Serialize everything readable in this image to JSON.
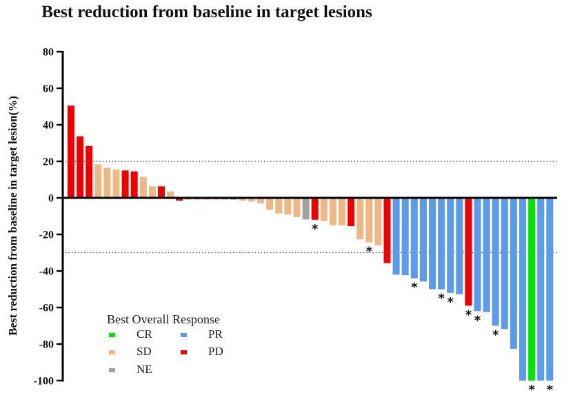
{
  "chart_data": {
    "type": "bar",
    "subtype": "waterfall",
    "title": "Best reduction from baseline in target lesions",
    "xlabel": "",
    "ylabel": "Best reduction from baseline in target lesion(%)",
    "ylim": [
      -100,
      80
    ],
    "yticks": [
      80,
      60,
      40,
      20,
      0,
      -20,
      -40,
      -60,
      -80,
      -100
    ],
    "reference_lines": [
      20,
      -30
    ],
    "grid": false,
    "legend": {
      "title": "Best Overall Response",
      "placement": "bottom-left",
      "entries": [
        {
          "key": "CR",
          "label": "CR",
          "color": "#00E600"
        },
        {
          "key": "PR",
          "label": "PR",
          "color": "#5B9BEA"
        },
        {
          "key": "SD",
          "label": "SD",
          "color": "#EDB883"
        },
        {
          "key": "PD",
          "label": "PD",
          "color": "#F00000"
        },
        {
          "key": "NE",
          "label": "NE",
          "color": "#A0A0A0"
        }
      ]
    },
    "marker_symbol": "*",
    "bars": [
      {
        "value": 50.5,
        "response": "PD",
        "marked": false
      },
      {
        "value": 33.7,
        "response": "PD",
        "marked": false
      },
      {
        "value": 28.4,
        "response": "PD",
        "marked": false
      },
      {
        "value": 18.4,
        "response": "SD",
        "marked": false
      },
      {
        "value": 16.5,
        "response": "SD",
        "marked": false
      },
      {
        "value": 15.5,
        "response": "SD",
        "marked": false
      },
      {
        "value": 15.0,
        "response": "PD",
        "marked": false
      },
      {
        "value": 14.5,
        "response": "PD",
        "marked": false
      },
      {
        "value": 11.5,
        "response": "SD",
        "marked": false
      },
      {
        "value": 6.3,
        "response": "SD",
        "marked": false
      },
      {
        "value": 6.3,
        "response": "PD",
        "marked": false
      },
      {
        "value": 3.5,
        "response": "SD",
        "marked": false
      },
      {
        "value": -1.5,
        "response": "PD",
        "marked": false
      },
      {
        "value": -1.0,
        "response": "SD",
        "marked": false
      },
      {
        "value": -1.0,
        "response": "SD",
        "marked": false
      },
      {
        "value": -1.0,
        "response": "SD",
        "marked": false
      },
      {
        "value": -1.0,
        "response": "SD",
        "marked": false
      },
      {
        "value": -1.0,
        "response": "SD",
        "marked": false
      },
      {
        "value": -1.0,
        "response": "NE",
        "marked": false
      },
      {
        "value": -1.5,
        "response": "SD",
        "marked": false
      },
      {
        "value": -2.0,
        "response": "SD",
        "marked": false
      },
      {
        "value": -3.0,
        "response": "SD",
        "marked": false
      },
      {
        "value": -6.5,
        "response": "SD",
        "marked": false
      },
      {
        "value": -8.5,
        "response": "SD",
        "marked": false
      },
      {
        "value": -9.0,
        "response": "SD",
        "marked": false
      },
      {
        "value": -10.5,
        "response": "SD",
        "marked": false
      },
      {
        "value": -11.8,
        "response": "NE",
        "marked": false
      },
      {
        "value": -12.0,
        "response": "PD",
        "marked": true
      },
      {
        "value": -12.7,
        "response": "SD",
        "marked": false
      },
      {
        "value": -15.0,
        "response": "SD",
        "marked": false
      },
      {
        "value": -15.0,
        "response": "SD",
        "marked": false
      },
      {
        "value": -15.5,
        "response": "PD",
        "marked": false
      },
      {
        "value": -22.7,
        "response": "SD",
        "marked": false
      },
      {
        "value": -24.3,
        "response": "SD",
        "marked": true
      },
      {
        "value": -26.0,
        "response": "SD",
        "marked": false
      },
      {
        "value": -35.7,
        "response": "PD",
        "marked": false
      },
      {
        "value": -42.0,
        "response": "PR",
        "marked": false
      },
      {
        "value": -42.3,
        "response": "PR",
        "marked": false
      },
      {
        "value": -44.0,
        "response": "PR",
        "marked": true
      },
      {
        "value": -45.8,
        "response": "PR",
        "marked": false
      },
      {
        "value": -50.0,
        "response": "PR",
        "marked": false
      },
      {
        "value": -50.0,
        "response": "PR",
        "marked": true
      },
      {
        "value": -52.0,
        "response": "PR",
        "marked": true
      },
      {
        "value": -52.7,
        "response": "PR",
        "marked": false
      },
      {
        "value": -59.0,
        "response": "PD",
        "marked": true
      },
      {
        "value": -62.0,
        "response": "PR",
        "marked": true
      },
      {
        "value": -62.5,
        "response": "PR",
        "marked": false
      },
      {
        "value": -70.0,
        "response": "PR",
        "marked": true
      },
      {
        "value": -71.8,
        "response": "PR",
        "marked": false
      },
      {
        "value": -82.6,
        "response": "PR",
        "marked": false
      },
      {
        "value": -100.0,
        "response": "PR",
        "marked": false
      },
      {
        "value": -100.0,
        "response": "CR",
        "marked": true
      },
      {
        "value": -100.0,
        "response": "PR",
        "marked": false
      },
      {
        "value": -100.0,
        "response": "PR",
        "marked": true
      }
    ]
  }
}
